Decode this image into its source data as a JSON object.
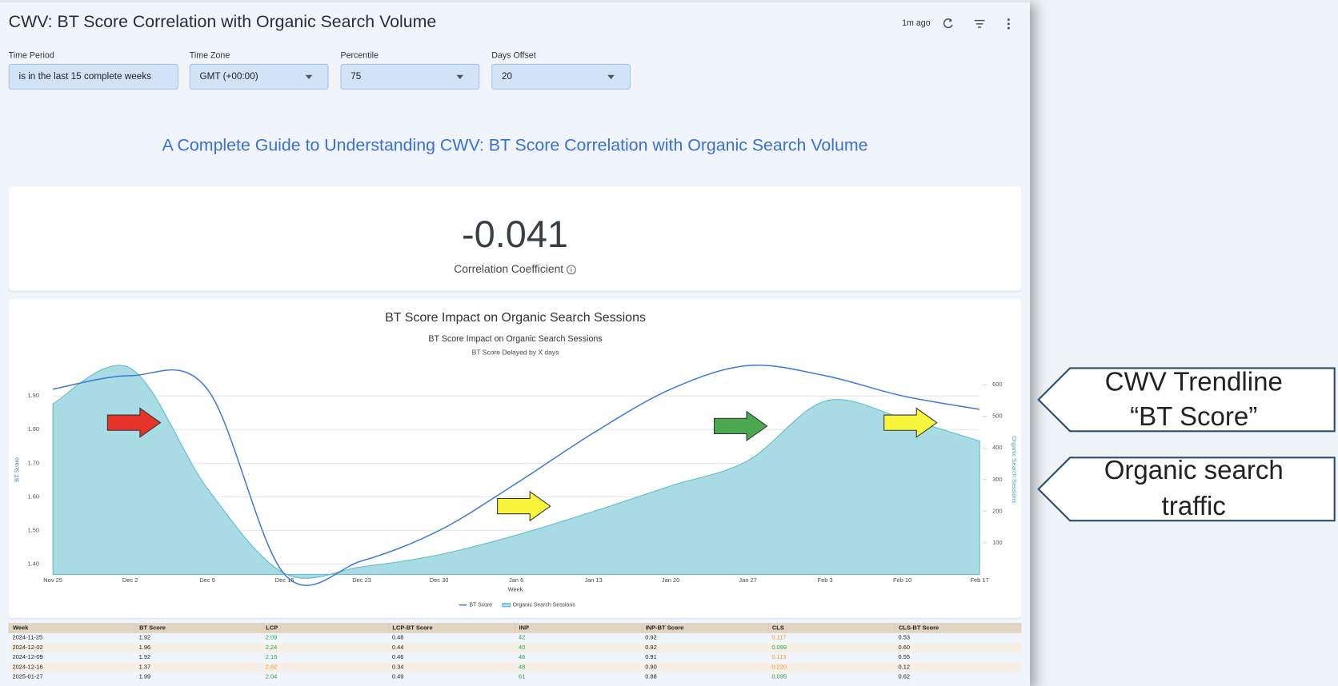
{
  "header": {
    "title": "CWV: BT Score Correlation with Organic Search Volume",
    "updated": "1m ago"
  },
  "filters": [
    {
      "label": "Time Period",
      "value": "is in the last 15 complete weeks"
    },
    {
      "label": "Time Zone",
      "value": "GMT (+00:00)"
    },
    {
      "label": "Percentile",
      "value": "75"
    },
    {
      "label": "Days Offset",
      "value": "20"
    }
  ],
  "guide_title": "A Complete Guide to Understanding CWV: BT Score Correlation with Organic Search Volume",
  "kpi": {
    "value": "-0.041",
    "label": "Correlation Coefficient"
  },
  "chart_data": {
    "type": "line",
    "panel_title": "BT Score Impact on Organic Search Sessions",
    "title": "BT Score Impact on Organic Search Sessions",
    "subtitle": "BT Score Delayed by X days",
    "x_label": "Week",
    "y_label": "BT Score",
    "y2_label": "Organic Search Sessions",
    "categories": [
      "Nov 25",
      "Dec 2",
      "Dec 9",
      "Dec 16",
      "Dec 23",
      "Dec 30",
      "Jan 6",
      "Jan 13",
      "Jan 20",
      "Jan 27",
      "Feb 3",
      "Feb 10",
      "Feb 17"
    ],
    "series": [
      {
        "name": "BT Score",
        "color": "#3a78d8",
        "kind": "line",
        "values": [
          1.92,
          1.96,
          1.92,
          1.37,
          1.41,
          1.5,
          1.64,
          1.79,
          1.92,
          1.99,
          1.96,
          1.9,
          1.86
        ]
      },
      {
        "name": "Organic Search Sessions",
        "color": "#5bbccc",
        "fill": "#a8dbe4",
        "kind": "area",
        "axis": "y2",
        "values": [
          540,
          653,
          272,
          3,
          24,
          62,
          124,
          199,
          280,
          360,
          548,
          495,
          422
        ]
      }
    ],
    "ylim": [
      1.37,
      1.98
    ],
    "yticks": [
      {
        "value": 1.4,
        "label": "1.40"
      },
      {
        "value": 1.5,
        "label": "1.50"
      },
      {
        "value": 1.6,
        "label": "1.60"
      },
      {
        "value": 1.7,
        "label": "1.70"
      },
      {
        "value": 1.8,
        "label": "1.80"
      },
      {
        "value": 1.9,
        "label": "1.90"
      }
    ],
    "y2lim": [
      0,
      650
    ],
    "y2ticks": [
      100,
      200,
      300,
      400,
      500,
      600
    ],
    "grid": true
  },
  "table": {
    "columns": [
      "Week",
      "BT Score",
      "LCP",
      "LCP-BT Score",
      "INP",
      "INP-BT Score",
      "CLS",
      "CLS-BT Score"
    ],
    "rows": [
      {
        "cells": [
          "2024-11-25",
          "1.92",
          "2.09",
          "0.48",
          "42",
          "0.92",
          "0.117",
          "0.53"
        ],
        "colors": {
          "2": "#2e9e4f",
          "4": "#2e9e4f",
          "6": "#f09a20"
        }
      },
      {
        "cells": [
          "2024-12-02",
          "1.96",
          "2.24",
          "0.44",
          "40",
          "0.92",
          "0.099",
          "0.60"
        ],
        "colors": {
          "2": "#2e9e4f",
          "4": "#2e9e4f",
          "6": "#2e9e4f"
        }
      },
      {
        "cells": [
          "2024-12-09",
          "1.92",
          "2.16",
          "0.46",
          "46",
          "0.91",
          "0.113",
          "0.55"
        ],
        "colors": {
          "2": "#2e9e4f",
          "4": "#2e9e4f",
          "6": "#f09a20"
        }
      },
      {
        "cells": [
          "2024-12-16",
          "1.37",
          "2.62",
          "0.34",
          "48",
          "0.90",
          "0.220",
          "0.12"
        ],
        "colors": {
          "2": "#f09a20",
          "4": "#2e9e4f",
          "6": "#f09a20"
        }
      },
      {
        "cells": [
          "2025-01-27",
          "1.99",
          "2.04",
          "0.49",
          "61",
          "0.88",
          "0.095",
          "0.62"
        ],
        "colors": {
          "2": "#2e9e4f",
          "4": "#2e9e4f",
          "6": "#2e9e4f"
        }
      }
    ]
  },
  "callouts": [
    {
      "lines": [
        "CWV Trendline",
        "“BT Score”"
      ]
    },
    {
      "lines": [
        "Organic search",
        "traffic"
      ]
    }
  ]
}
